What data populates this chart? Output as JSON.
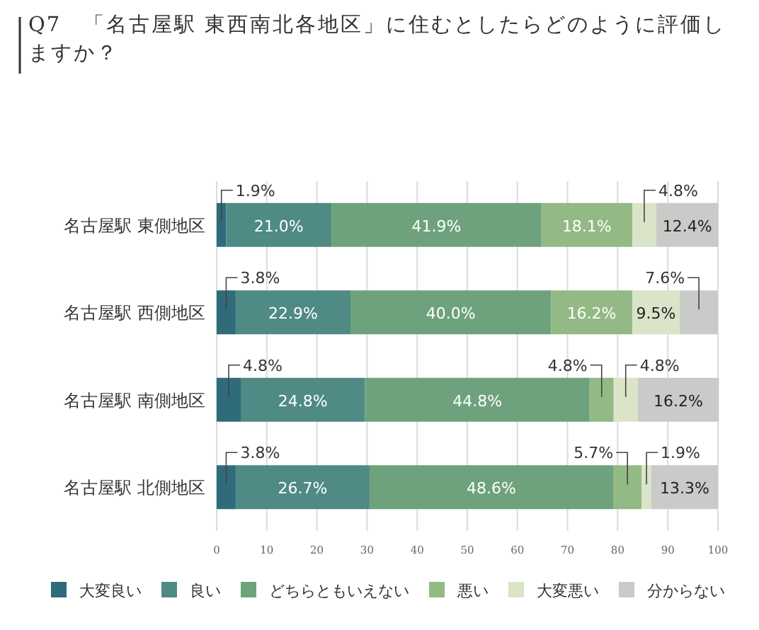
{
  "chart_data": {
    "type": "bar",
    "orientation": "horizontal",
    "stacked": true,
    "title": "Q7　「名古屋駅 東西南北各地区」に住むとしたらどのように評価しますか？",
    "categories": [
      "名古屋駅 東側地区",
      "名古屋駅 西側地区",
      "名古屋駅 南側地区",
      "名古屋駅 北側地区"
    ],
    "series": [
      {
        "name": "大変良い",
        "color": "#2f6b7a",
        "values": [
          1.9,
          3.8,
          4.8,
          3.8
        ],
        "value_labels": [
          "1.9%",
          "3.8%",
          "4.8%",
          "3.8%"
        ]
      },
      {
        "name": "良い",
        "color": "#4f8a85",
        "values": [
          21.0,
          22.9,
          24.8,
          26.7
        ],
        "value_labels": [
          "21.0%",
          "22.9%",
          "24.8%",
          "26.7%"
        ]
      },
      {
        "name": "どちらともいえない",
        "color": "#6ea27c",
        "values": [
          41.9,
          40.0,
          44.8,
          48.6
        ],
        "value_labels": [
          "41.9%",
          "40.0%",
          "44.8%",
          "48.6%"
        ]
      },
      {
        "name": "悪い",
        "color": "#93b985",
        "values": [
          18.1,
          16.2,
          4.8,
          5.7
        ],
        "value_labels": [
          "18.1%",
          "16.2%",
          "4.8%",
          "5.7%"
        ]
      },
      {
        "name": "大変悪い",
        "color": "#d9e4c8",
        "values": [
          4.8,
          9.5,
          4.8,
          1.9
        ],
        "value_labels": [
          "4.8%",
          "9.5%",
          "4.8%",
          "1.9%"
        ]
      },
      {
        "name": "分からない",
        "color": "#c9cbc8",
        "values": [
          12.4,
          7.6,
          16.2,
          13.3
        ],
        "value_labels": [
          "12.4%",
          "7.6%",
          "16.2%",
          "13.3%"
        ]
      }
    ],
    "xlim": [
      0,
      100
    ],
    "xticks": [
      0,
      10,
      20,
      30,
      40,
      50,
      60,
      70,
      80,
      90,
      100
    ],
    "grid": "x",
    "legend": "bottom"
  }
}
